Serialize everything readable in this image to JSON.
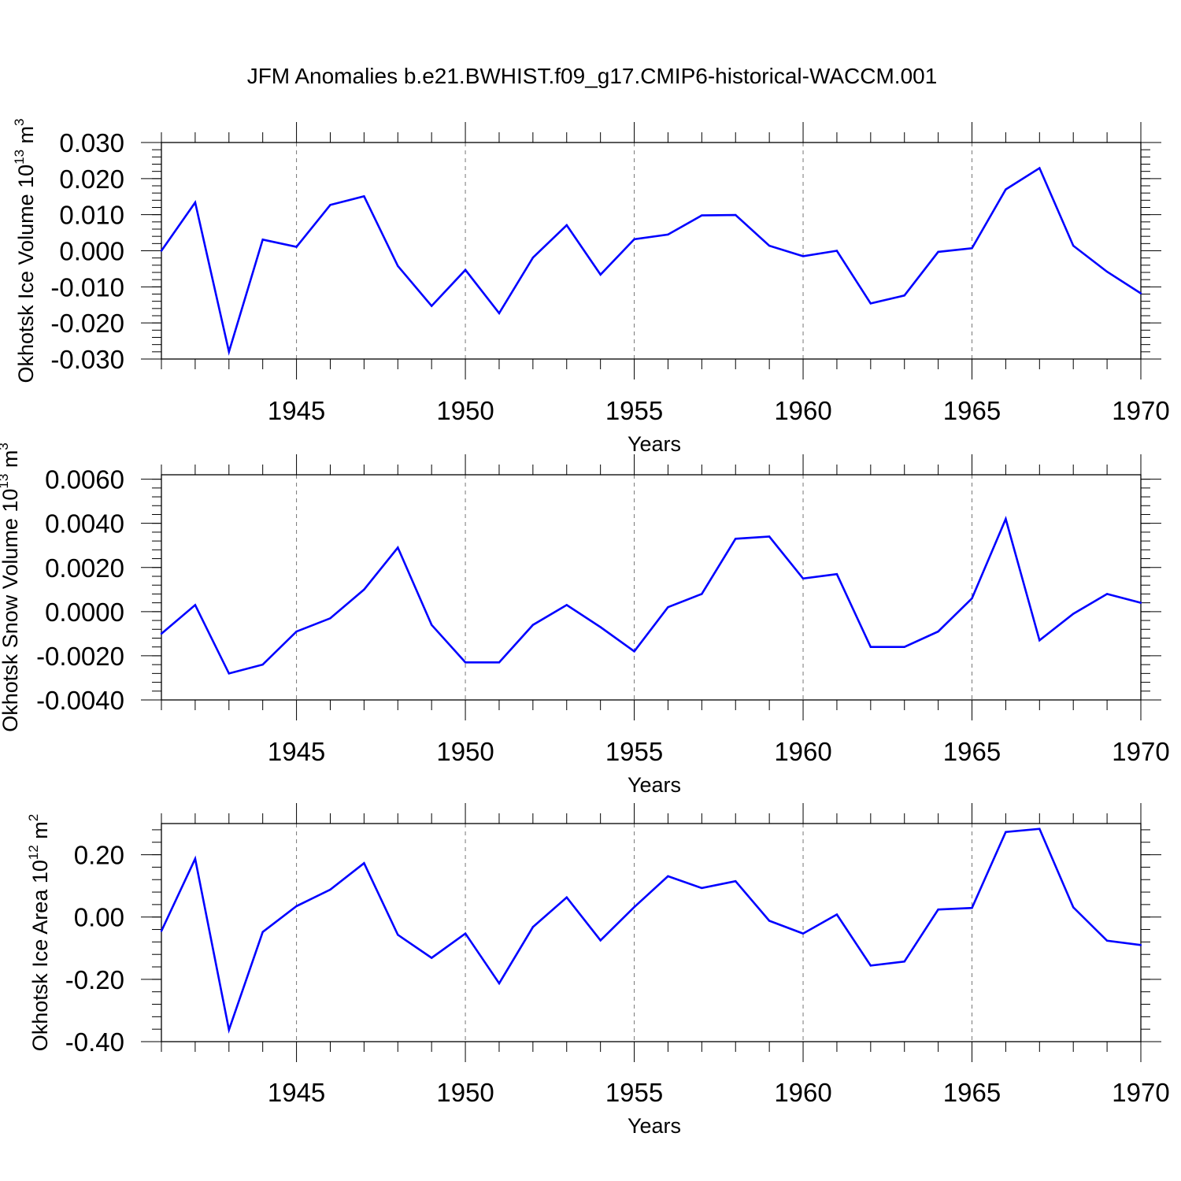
{
  "title": "JFM Anomalies b.e21.BWHIST.f09_g17.CMIP6-historical-WACCM.001",
  "line_color": "#0000ff",
  "chart_data": [
    {
      "type": "line",
      "name": "ice-volume",
      "ylabel_base": "Okhotsk Ice Volume 10",
      "ylabel_exp": "13",
      "ylabel_unit": " m",
      "ylabel_unit_exp": "3",
      "xlabel": "Years",
      "xlim": [
        1941,
        1970
      ],
      "ylim": [
        -0.03,
        0.03
      ],
      "x_ticks": [
        "1945",
        "1950",
        "1955",
        "1960",
        "1965",
        "1970"
      ],
      "y_ticks": [
        "0.030",
        "0.020",
        "0.010",
        "0.000",
        "-0.010",
        "-0.020",
        "-0.030"
      ],
      "y_tick_values": [
        0.03,
        0.02,
        0.01,
        0.0,
        -0.01,
        -0.02,
        -0.03
      ],
      "minor_step": 0.002,
      "x": [
        1941,
        1942,
        1943,
        1944,
        1945,
        1946,
        1947,
        1948,
        1949,
        1950,
        1951,
        1952,
        1953,
        1954,
        1955,
        1956,
        1957,
        1958,
        1959,
        1960,
        1961,
        1962,
        1963,
        1964,
        1965,
        1966,
        1967,
        1968,
        1969,
        1970
      ],
      "values": [
        0.0,
        0.0134,
        -0.028,
        0.0031,
        0.0011,
        0.0127,
        0.0151,
        -0.0042,
        -0.0153,
        -0.0053,
        -0.0173,
        -0.0019,
        0.0071,
        -0.0066,
        0.0032,
        0.0045,
        0.0098,
        0.0099,
        0.0014,
        -0.0015,
        0.0,
        -0.0146,
        -0.0124,
        -0.0003,
        0.0007,
        0.017,
        0.0229,
        0.0014,
        -0.0058,
        -0.0118
      ]
    },
    {
      "type": "line",
      "name": "snow-volume",
      "ylabel_base": "Okhotsk Snow Volume 10",
      "ylabel_exp": "13",
      "ylabel_unit": " m",
      "ylabel_unit_exp": "3",
      "xlabel": "Years",
      "xlim": [
        1941,
        1970
      ],
      "ylim": [
        -0.004,
        0.0062
      ],
      "x_ticks": [
        "1945",
        "1950",
        "1955",
        "1960",
        "1965",
        "1970"
      ],
      "y_ticks": [
        "0.0060",
        "0.0040",
        "0.0020",
        "0.0000",
        "-0.0020",
        "-0.0040"
      ],
      "y_tick_values": [
        0.006,
        0.004,
        0.002,
        0.0,
        -0.002,
        -0.004
      ],
      "minor_step": 0.0004,
      "x": [
        1941,
        1942,
        1943,
        1944,
        1945,
        1946,
        1947,
        1948,
        1949,
        1950,
        1951,
        1952,
        1953,
        1954,
        1955,
        1956,
        1957,
        1958,
        1959,
        1960,
        1961,
        1962,
        1963,
        1964,
        1965,
        1966,
        1967,
        1968,
        1969,
        1970
      ],
      "values": [
        -0.001,
        0.0003,
        -0.0028,
        -0.0024,
        -0.0009,
        -0.0003,
        0.001,
        0.0029,
        -0.0006,
        -0.0023,
        -0.0023,
        -0.0006,
        0.0003,
        -0.0007,
        -0.0018,
        0.0002,
        0.0008,
        0.0033,
        0.0034,
        0.0015,
        0.0017,
        -0.0016,
        -0.0016,
        -0.0009,
        0.0006,
        0.0042,
        -0.0013,
        -0.0001,
        0.0008,
        0.0004
      ]
    },
    {
      "type": "line",
      "name": "ice-area",
      "ylabel_base": "Okhotsk Ice Area 10",
      "ylabel_exp": "12",
      "ylabel_unit": " m",
      "ylabel_unit_exp": "2",
      "xlabel": "Years",
      "xlim": [
        1941,
        1970
      ],
      "ylim": [
        -0.4,
        0.3
      ],
      "x_ticks": [
        "1945",
        "1950",
        "1955",
        "1960",
        "1965",
        "1970"
      ],
      "y_ticks": [
        "0.20",
        "0.00",
        "-0.20",
        "-0.40"
      ],
      "y_tick_values": [
        0.2,
        0.0,
        -0.2,
        -0.4
      ],
      "minor_step": 0.04,
      "x": [
        1941,
        1942,
        1943,
        1944,
        1945,
        1946,
        1947,
        1948,
        1949,
        1950,
        1951,
        1952,
        1953,
        1954,
        1955,
        1956,
        1957,
        1958,
        1959,
        1960,
        1961,
        1962,
        1963,
        1964,
        1965,
        1966,
        1967,
        1968,
        1969,
        1970
      ],
      "values": [
        -0.045,
        0.187,
        -0.362,
        -0.048,
        0.035,
        0.088,
        0.173,
        -0.057,
        -0.131,
        -0.053,
        -0.213,
        -0.032,
        0.063,
        -0.075,
        0.032,
        0.131,
        0.093,
        0.115,
        -0.012,
        -0.053,
        0.008,
        -0.156,
        -0.143,
        0.024,
        0.029,
        0.273,
        0.283,
        0.031,
        -0.076,
        -0.09
      ]
    }
  ]
}
